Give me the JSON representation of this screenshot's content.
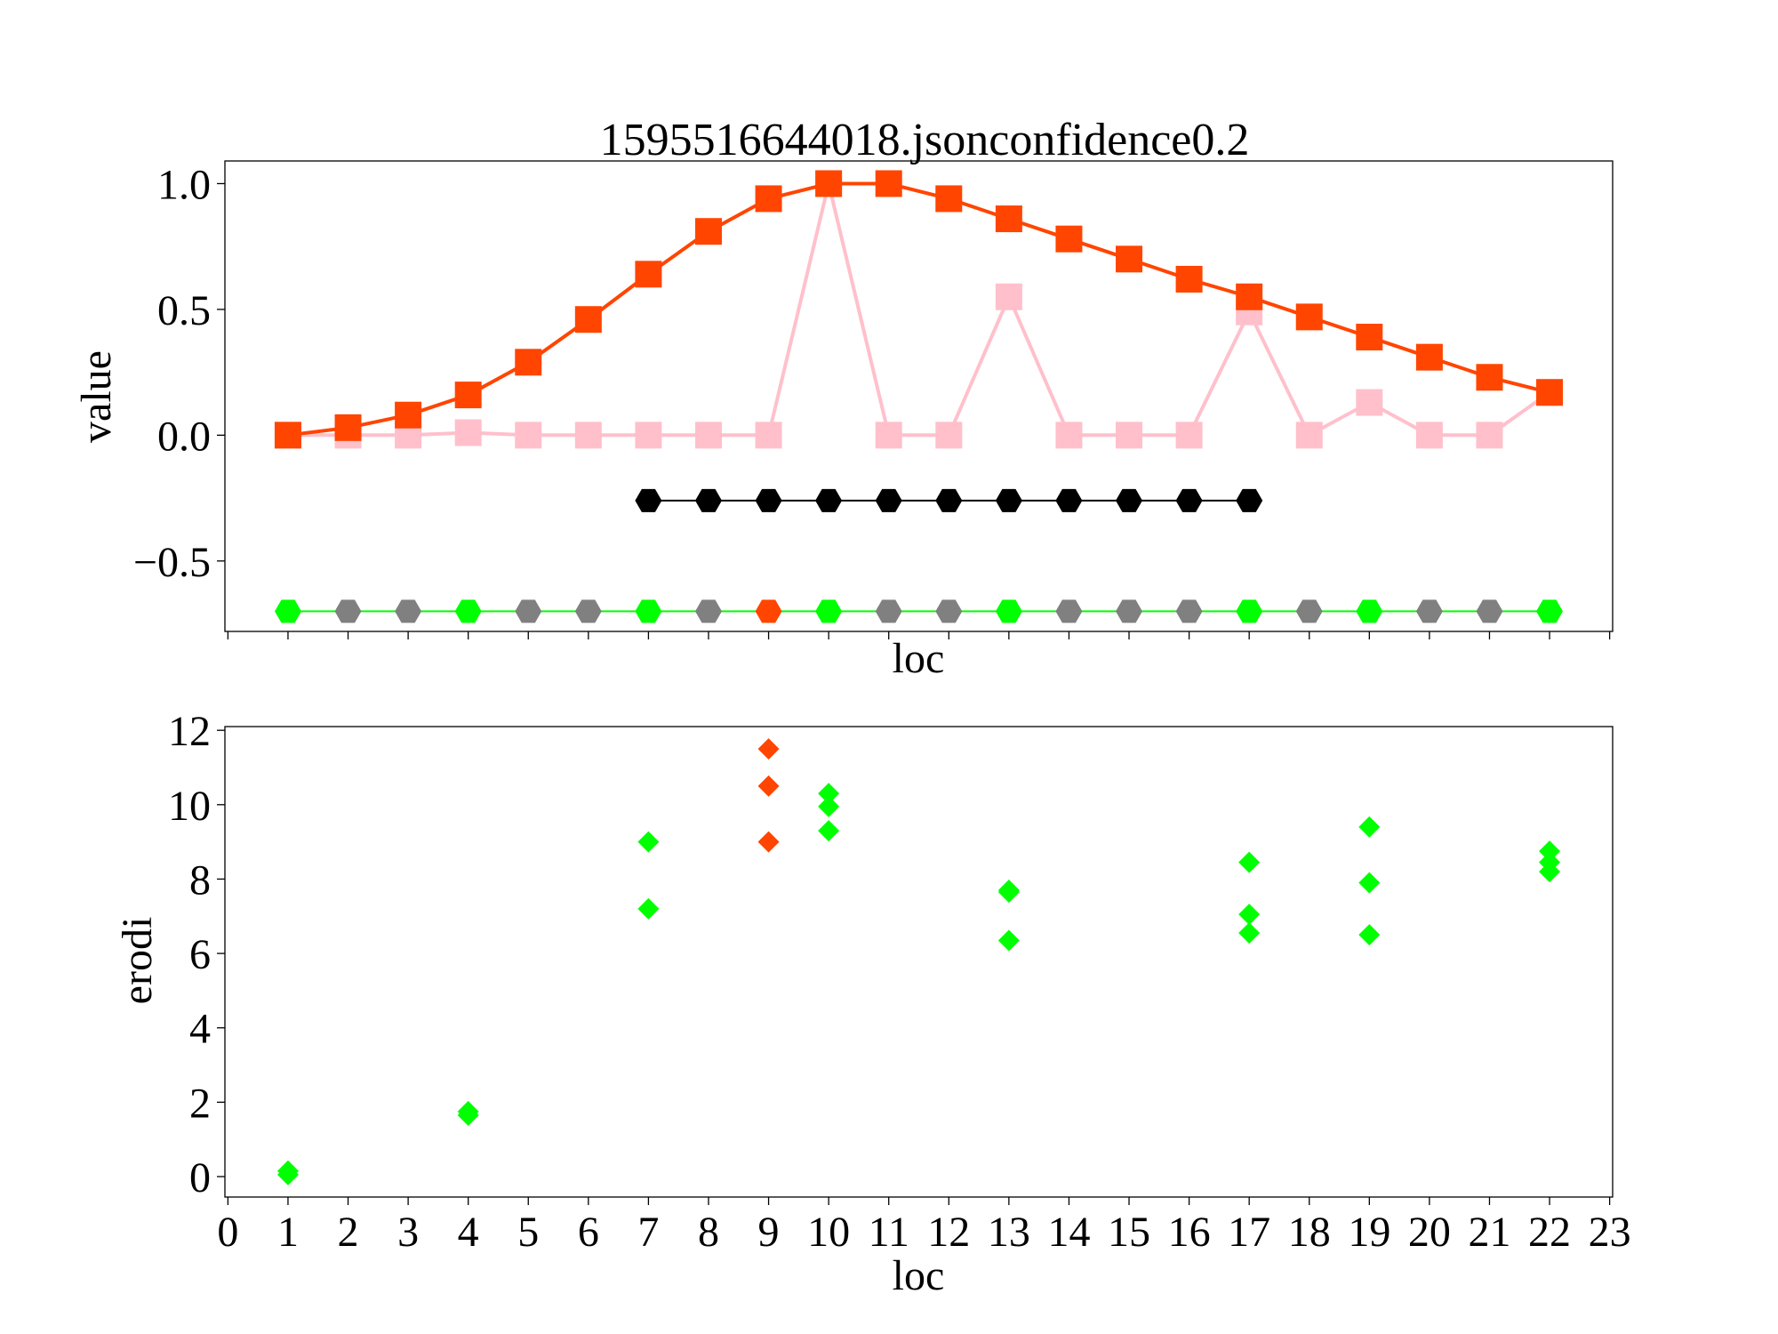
{
  "chart_data": [
    {
      "type": "line",
      "title": "1595516644018.jsonconfidence0.2",
      "xlabel": "loc",
      "ylabel": "value",
      "xlim": [
        -0.05,
        23.05
      ],
      "ylim": [
        -0.78,
        1.09
      ],
      "yticks": [
        {
          "value": 1.0,
          "label": "1.0"
        },
        {
          "value": 0.5,
          "label": "0.5"
        },
        {
          "value": 0.0,
          "label": "0.0"
        },
        {
          "value": -0.5,
          "label": "−0.5"
        }
      ],
      "grid": false,
      "series": [
        {
          "marker": "square",
          "color": "#ffc0cb",
          "x": [
            1,
            2,
            3,
            4,
            5,
            6,
            7,
            8,
            9,
            10,
            11,
            12,
            13,
            14,
            15,
            16,
            17,
            18,
            19,
            20,
            21,
            22
          ],
          "y": [
            0.0,
            0.0,
            0.0,
            0.01,
            0.0,
            0.0,
            0.0,
            0.0,
            0.0,
            1.0,
            0.0,
            0.0,
            0.55,
            0.0,
            0.0,
            0.0,
            0.49,
            0.0,
            0.13,
            0.0,
            0.0,
            0.17
          ]
        },
        {
          "marker": "square",
          "color": "#ff4500",
          "x": [
            1,
            2,
            3,
            4,
            5,
            6,
            7,
            8,
            9,
            10,
            11,
            12,
            13,
            14,
            15,
            16,
            17,
            18,
            19,
            20,
            21,
            22
          ],
          "y": [
            0.0,
            0.03,
            0.08,
            0.16,
            0.29,
            0.46,
            0.64,
            0.81,
            0.94,
            1.0,
            1.0,
            0.94,
            0.86,
            0.78,
            0.7,
            0.62,
            0.55,
            0.47,
            0.39,
            0.31,
            0.23,
            0.17
          ]
        },
        {
          "marker": "hexagon",
          "color": "#000000",
          "x": [
            7,
            8,
            9,
            10,
            11,
            12,
            13,
            14,
            15,
            16,
            17
          ],
          "y": [
            -0.26,
            -0.26,
            -0.26,
            -0.26,
            -0.26,
            -0.26,
            -0.26,
            -0.26,
            -0.26,
            -0.26,
            -0.26
          ]
        },
        {
          "marker": "hexagon",
          "color": "#00ff00",
          "line_color": "#00ff00",
          "x": [
            1,
            2,
            3,
            4,
            5,
            6,
            7,
            8,
            9,
            10,
            11,
            12,
            13,
            14,
            15,
            16,
            17,
            18,
            19,
            20,
            21,
            22
          ],
          "y": [
            -0.7,
            -0.7,
            -0.7,
            -0.7,
            -0.7,
            -0.7,
            -0.7,
            -0.7,
            -0.7,
            -0.7,
            -0.7,
            -0.7,
            -0.7,
            -0.7,
            -0.7,
            -0.7,
            -0.7,
            -0.7,
            -0.7,
            -0.7,
            -0.7,
            -0.7
          ],
          "point_colors": [
            "#00ff00",
            "#808080",
            "#808080",
            "#00ff00",
            "#808080",
            "#808080",
            "#00ff00",
            "#808080",
            "#ff4500",
            "#00ff00",
            "#808080",
            "#808080",
            "#00ff00",
            "#808080",
            "#808080",
            "#808080",
            "#00ff00",
            "#808080",
            "#00ff00",
            "#808080",
            "#808080",
            "#00ff00"
          ]
        }
      ]
    },
    {
      "type": "scatter",
      "xlabel": "loc",
      "ylabel": "erodi",
      "xlim": [
        -0.05,
        23.05
      ],
      "ylim": [
        -0.55,
        12.1
      ],
      "xticks": [
        0,
        1,
        2,
        3,
        4,
        5,
        6,
        7,
        8,
        9,
        10,
        11,
        12,
        13,
        14,
        15,
        16,
        17,
        18,
        19,
        20,
        21,
        22,
        23
      ],
      "yticks": [
        {
          "value": 0,
          "label": "0"
        },
        {
          "value": 2,
          "label": "2"
        },
        {
          "value": 4,
          "label": "4"
        },
        {
          "value": 6,
          "label": "6"
        },
        {
          "value": 8,
          "label": "8"
        },
        {
          "value": 10,
          "label": "10"
        },
        {
          "value": 12,
          "label": "12"
        }
      ],
      "grid": false,
      "series": [
        {
          "marker": "diamond",
          "color": "#00ff00",
          "x": [
            1,
            1,
            4,
            4,
            7,
            7,
            10,
            10,
            10,
            13,
            13,
            13,
            17,
            17,
            17,
            19,
            19,
            19,
            22,
            22,
            22
          ],
          "y": [
            0.05,
            0.15,
            1.65,
            1.75,
            7.2,
            9.0,
            9.3,
            9.95,
            10.3,
            6.35,
            7.65,
            7.7,
            6.55,
            7.05,
            8.45,
            6.5,
            7.9,
            9.4,
            8.2,
            8.45,
            8.75
          ]
        },
        {
          "marker": "diamond",
          "color": "#ff4500",
          "x": [
            9,
            9,
            9
          ],
          "y": [
            9.0,
            10.5,
            11.5
          ]
        }
      ]
    }
  ]
}
